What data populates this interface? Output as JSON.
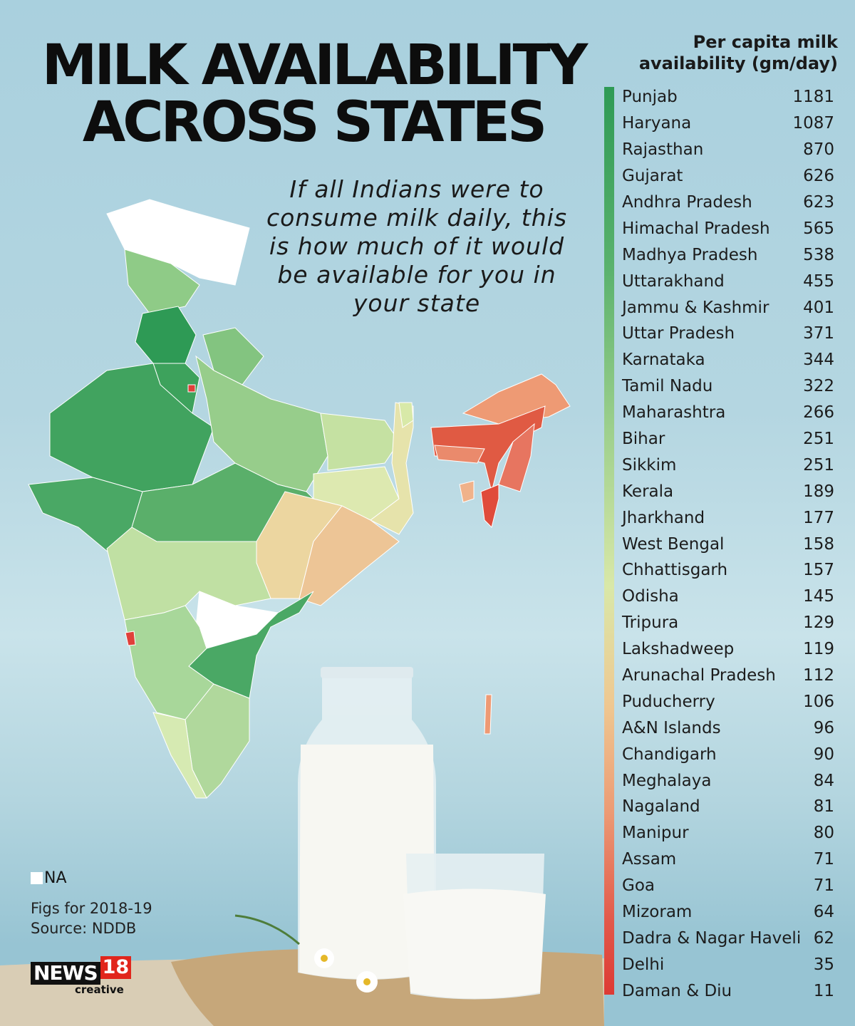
{
  "title_line1": "MILK AVAILABILITY",
  "title_line2": "ACROSS STATES",
  "subtitle": "If all Indians were to consume milk daily, this is how much of it would be available for you in your state",
  "legend": {
    "na_label": "NA",
    "na_color": "#ffffff"
  },
  "notes": {
    "year": "Figs for 2018-19",
    "source": "Source: NDDB"
  },
  "logo": {
    "news": "NEWS",
    "number": "18",
    "sub": "creative"
  },
  "chart_data": {
    "type": "table",
    "title": "MILK AVAILABILITY ACROSS STATES",
    "column_header": "Per capita milk availability (gm/day)",
    "rows": [
      {
        "state": "Punjab",
        "value": 1181
      },
      {
        "state": "Haryana",
        "value": 1087
      },
      {
        "state": "Rajasthan",
        "value": 870
      },
      {
        "state": "Gujarat",
        "value": 626
      },
      {
        "state": "Andhra Pradesh",
        "value": 623
      },
      {
        "state": "Himachal Pradesh",
        "value": 565
      },
      {
        "state": "Madhya Pradesh",
        "value": 538
      },
      {
        "state": "Uttarakhand",
        "value": 455
      },
      {
        "state": "Jammu & Kashmir",
        "value": 401
      },
      {
        "state": "Uttar Pradesh",
        "value": 371
      },
      {
        "state": "Karnataka",
        "value": 344
      },
      {
        "state": "Tamil Nadu",
        "value": 322
      },
      {
        "state": "Maharashtra",
        "value": 266
      },
      {
        "state": "Bihar",
        "value": 251
      },
      {
        "state": "Sikkim",
        "value": 251
      },
      {
        "state": "Kerala",
        "value": 189
      },
      {
        "state": "Jharkhand",
        "value": 177
      },
      {
        "state": "West Bengal",
        "value": 158
      },
      {
        "state": "Chhattisgarh",
        "value": 157
      },
      {
        "state": "Odisha",
        "value": 145
      },
      {
        "state": "Tripura",
        "value": 129
      },
      {
        "state": "Lakshadweep",
        "value": 119
      },
      {
        "state": "Arunachal Pradesh",
        "value": 112
      },
      {
        "state": "Puducherry",
        "value": 106
      },
      {
        "state": "A&N Islands",
        "value": 96
      },
      {
        "state": "Chandigarh",
        "value": 90
      },
      {
        "state": "Meghalaya",
        "value": 84
      },
      {
        "state": "Nagaland",
        "value": 81
      },
      {
        "state": "Manipur",
        "value": 80
      },
      {
        "state": "Assam",
        "value": 71
      },
      {
        "state": "Goa",
        "value": 71
      },
      {
        "state": "Mizoram",
        "value": 64
      },
      {
        "state": "Dadra & Nagar Haveli",
        "value": 62
      },
      {
        "state": "Delhi",
        "value": 35
      },
      {
        "state": "Daman & Diu",
        "value": 11
      }
    ],
    "color_scale": {
      "high": "#2e9a55",
      "mid": "#d9e8a8",
      "low": "#dd3a34"
    }
  }
}
